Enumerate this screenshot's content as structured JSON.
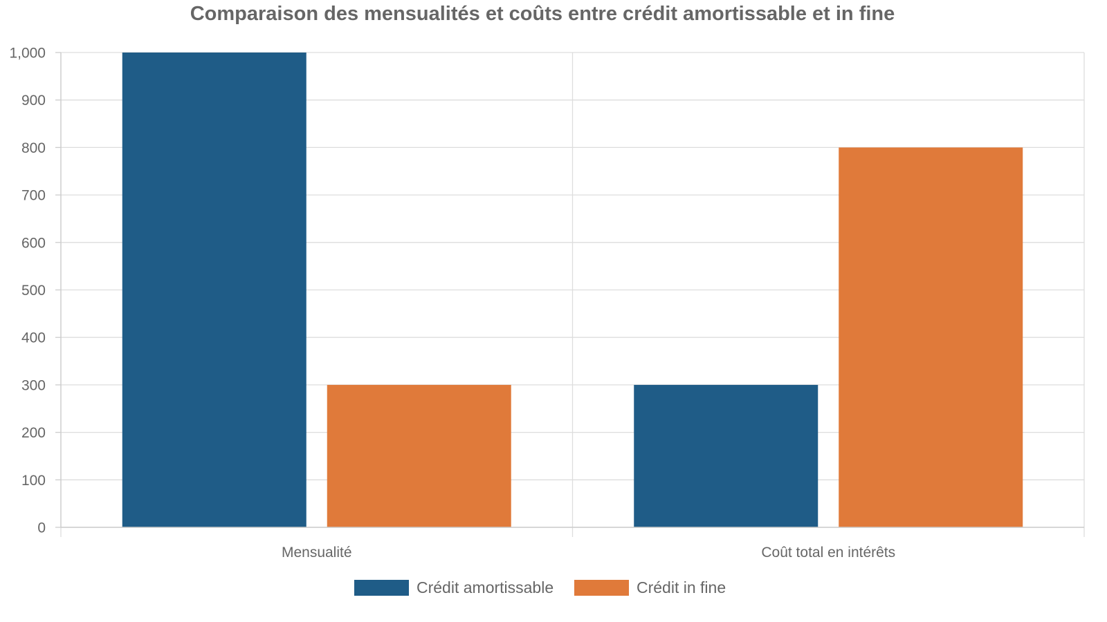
{
  "chart_data": {
    "type": "bar",
    "title": "Comparaison des mensualités et coûts entre crédit amortissable et in fine",
    "xlabel": "",
    "ylabel": "",
    "categories": [
      "Mensualité",
      "Coût total en intérêts"
    ],
    "series": [
      {
        "name": "Crédit amortissable",
        "color": "#1f5c87",
        "values": [
          1000,
          300
        ]
      },
      {
        "name": "Crédit in fine",
        "color": "#e07a3a",
        "values": [
          300,
          800
        ]
      }
    ],
    "ylim": [
      0,
      1000
    ],
    "yticks": [
      0,
      100,
      200,
      300,
      400,
      500,
      600,
      700,
      800,
      900,
      1000
    ],
    "ytick_labels": [
      "0",
      "100",
      "200",
      "300",
      "400",
      "500",
      "600",
      "700",
      "800",
      "900",
      "1,000"
    ],
    "grid": true,
    "legend_position": "bottom-center"
  }
}
